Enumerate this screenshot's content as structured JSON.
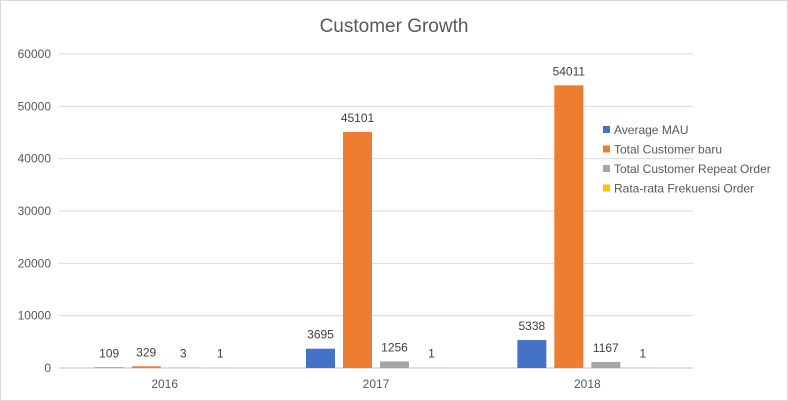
{
  "chart_data": {
    "type": "bar",
    "title": "Customer Growth",
    "categories": [
      "2016",
      "2017",
      "2018"
    ],
    "series": [
      {
        "name": "Average MAU",
        "values": [
          109,
          3695,
          5338
        ],
        "color": "#4472c4"
      },
      {
        "name": "Total Customer baru",
        "values": [
          329,
          45101,
          54011
        ],
        "color": "#ed7d31"
      },
      {
        "name": "Total Customer Repeat Order",
        "values": [
          3,
          1256,
          1167
        ],
        "color": "#a5a5a5"
      },
      {
        "name": "Rata-rata Frekuensi Order",
        "values": [
          1,
          1,
          1
        ],
        "color": "#ffc000"
      }
    ],
    "ylim": [
      0,
      60000
    ],
    "yticks": [
      0,
      10000,
      20000,
      30000,
      40000,
      50000,
      60000
    ],
    "xlabel": "",
    "ylabel": "",
    "grid": true,
    "legend_position": "right",
    "data_labels": true
  }
}
